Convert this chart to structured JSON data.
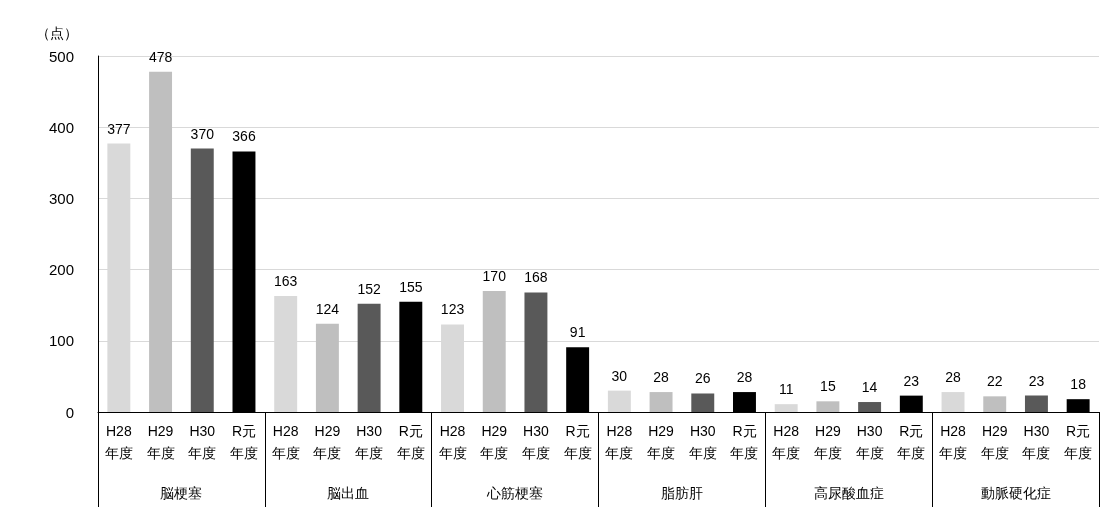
{
  "chart_data": {
    "type": "bar",
    "ylabel": "（点）",
    "categories": [
      "脳梗塞",
      "脳出血",
      "心筋梗塞",
      "脂肪肝",
      "高尿酸血症",
      "動脈硬化症"
    ],
    "series": [
      {
        "name": "H28年度",
        "color": "#d9d9d9",
        "values": [
          377,
          163,
          123,
          30,
          11,
          28
        ]
      },
      {
        "name": "H29年度",
        "color": "#bfbfbf",
        "values": [
          478,
          124,
          170,
          28,
          15,
          22
        ]
      },
      {
        "name": "H30年度",
        "color": "#595959",
        "values": [
          370,
          152,
          168,
          26,
          14,
          23
        ]
      },
      {
        "name": "R元年度",
        "color": "#000000",
        "values": [
          366,
          155,
          91,
          28,
          23,
          18
        ]
      }
    ],
    "ylim": [
      0,
      500
    ],
    "yticks": [
      0,
      100,
      200,
      300,
      400,
      500
    ],
    "grid": "y",
    "data_labels": true
  }
}
